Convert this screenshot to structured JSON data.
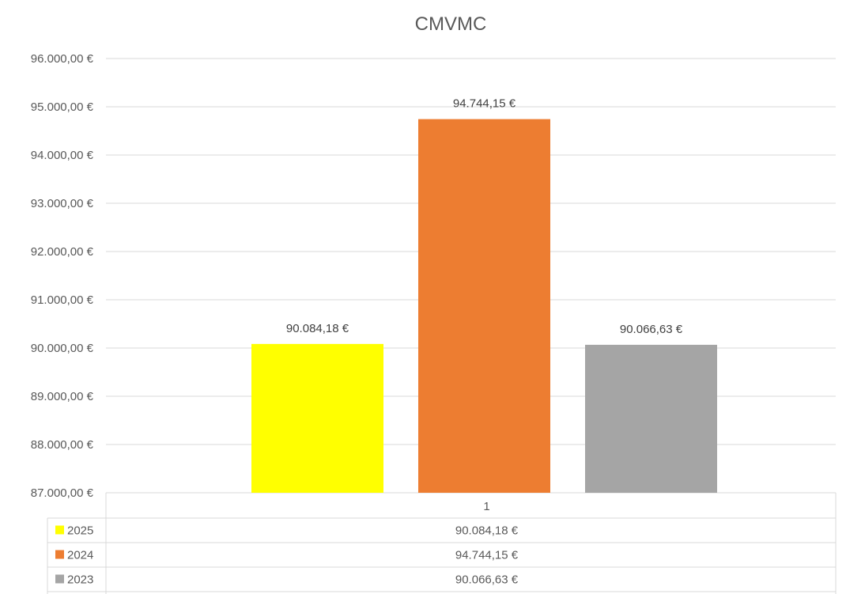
{
  "chart_data": {
    "type": "bar",
    "title": "CMVMC",
    "categories": [
      "1"
    ],
    "series": [
      {
        "name": "2025",
        "values": [
          90084.18
        ],
        "label": "90.084,18 €",
        "color": "#FFFF00"
      },
      {
        "name": "2024",
        "values": [
          94744.15
        ],
        "label": "94.744,15 €",
        "color": "#ED7D31"
      },
      {
        "name": "2023",
        "values": [
          90066.63
        ],
        "label": "90.066,63 €",
        "color": "#A5A5A5"
      }
    ],
    "ylim": [
      87000,
      96000
    ],
    "y_ticks": [
      {
        "value": 96000,
        "label": "96.000,00 €"
      },
      {
        "value": 95000,
        "label": "95.000,00 €"
      },
      {
        "value": 94000,
        "label": "94.000,00 €"
      },
      {
        "value": 93000,
        "label": "93.000,00 €"
      },
      {
        "value": 92000,
        "label": "92.000,00 €"
      },
      {
        "value": 91000,
        "label": "91.000,00 €"
      },
      {
        "value": 90000,
        "label": "90.000,00 €"
      },
      {
        "value": 89000,
        "label": "89.000,00 €"
      },
      {
        "value": 88000,
        "label": "88.000,00 €"
      },
      {
        "value": 87000,
        "label": "87.000,00 €"
      }
    ],
    "grid": true,
    "legend": "data-table",
    "data_table": true
  }
}
